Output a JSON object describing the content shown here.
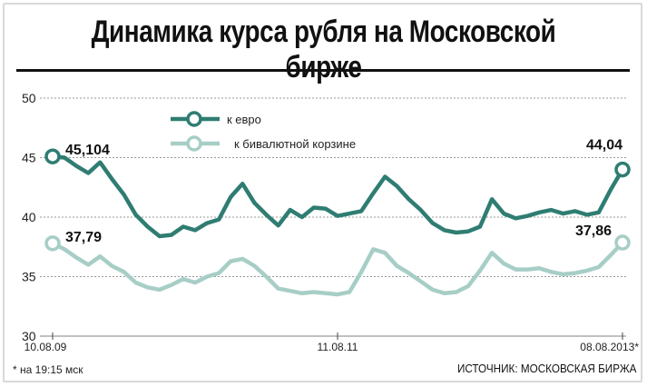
{
  "title": "Динамика курса рубля на Московской бирже",
  "footnote": "* на 19:15 мск",
  "source": "ИСТОЧНИК: МОСКОВСКАЯ БИРЖА",
  "chart_data": {
    "type": "line",
    "ylim": [
      30,
      50
    ],
    "yticks": [
      "50",
      "45",
      "40",
      "35",
      "30"
    ],
    "xticks": [
      "10.08.09",
      "11.08.11",
      "08.08.2013*"
    ],
    "xlim_index": [
      0,
      48
    ],
    "legend_position": "top-left",
    "colors": {
      "euro": "#2f7d72",
      "basket": "#a7cec6",
      "grid": "#9a9a9a"
    },
    "series": [
      {
        "name": "к евро",
        "start_label": "45,104",
        "end_label": "44,04",
        "values": [
          45.1,
          45.0,
          44.3,
          43.7,
          44.6,
          43.2,
          41.9,
          40.2,
          39.2,
          38.4,
          38.5,
          39.2,
          38.9,
          39.5,
          39.8,
          41.7,
          42.8,
          41.2,
          40.2,
          39.3,
          40.6,
          40.0,
          40.8,
          40.7,
          40.1,
          40.3,
          40.5,
          42.0,
          43.4,
          42.6,
          41.5,
          40.6,
          39.5,
          38.9,
          38.7,
          38.8,
          39.2,
          41.5,
          40.3,
          39.9,
          40.1,
          40.4,
          40.6,
          40.3,
          40.5,
          40.2,
          40.4,
          42.3,
          44.0
        ]
      },
      {
        "name": "к бивалютной корзине",
        "start_label": "37,79",
        "end_label": "37,86",
        "values": [
          37.8,
          37.3,
          36.6,
          36.0,
          36.7,
          35.9,
          35.4,
          34.5,
          34.1,
          33.9,
          34.3,
          34.8,
          34.5,
          35.0,
          35.3,
          36.3,
          36.5,
          35.9,
          35.0,
          34.0,
          33.8,
          33.6,
          33.7,
          33.6,
          33.5,
          33.7,
          35.4,
          37.3,
          37.0,
          35.9,
          35.3,
          34.6,
          33.9,
          33.6,
          33.7,
          34.2,
          35.5,
          37.0,
          36.1,
          35.6,
          35.6,
          35.7,
          35.4,
          35.2,
          35.3,
          35.5,
          35.8,
          36.8,
          37.86
        ]
      }
    ]
  }
}
